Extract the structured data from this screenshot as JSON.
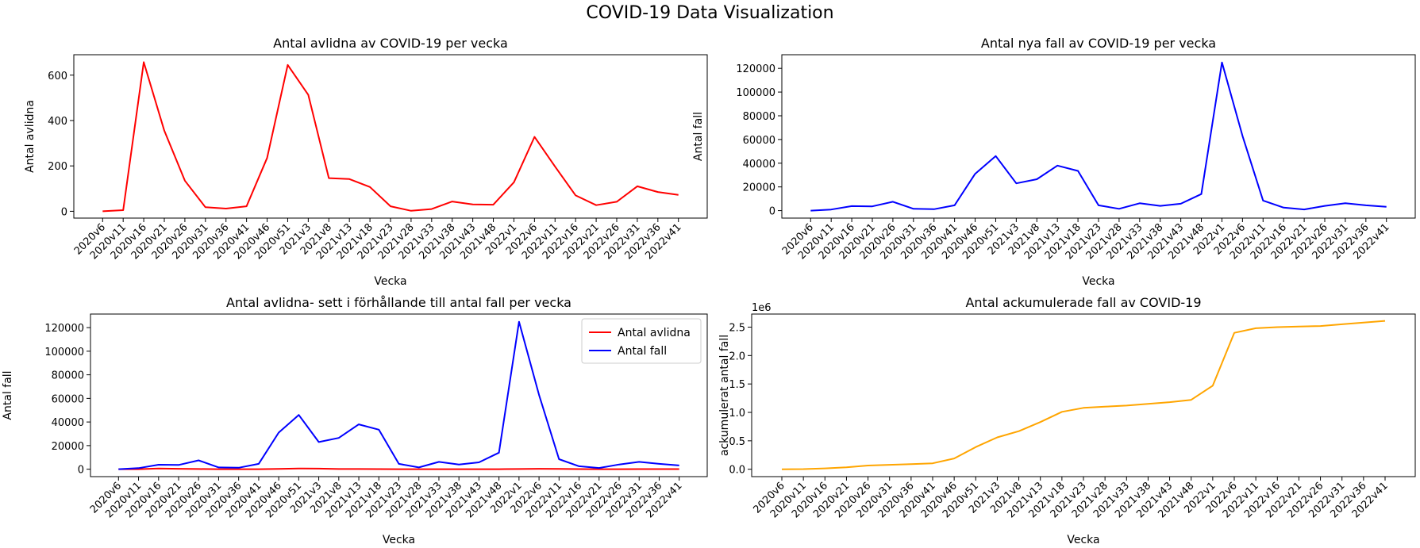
{
  "figure": {
    "suptitle": "COVID-19 Data Visualization",
    "colors": {
      "deaths": "#ff0000",
      "cases": "#0000ff",
      "cumulative": "#ffa500"
    }
  },
  "chart_data": [
    {
      "type": "line",
      "title": "Antal avlidna av COVID-19 per vecka",
      "xlabel": "Vecka",
      "ylabel": "Antal avlidna",
      "categories": [
        "2020v6",
        "2020v11",
        "2020v16",
        "2020v21",
        "2020v26",
        "2020v31",
        "2020v36",
        "2020v41",
        "2020v46",
        "2020v51",
        "2021v3",
        "2021v8",
        "2021v13",
        "2021v18",
        "2021v23",
        "2021v28",
        "2021v33",
        "2021v38",
        "2021v43",
        "2021v48",
        "2022v1",
        "2022v6",
        "2022v11",
        "2022v16",
        "2022v21",
        "2022v26",
        "2022v31",
        "2022v36",
        "2022v41"
      ],
      "ylim": [
        -30,
        690
      ],
      "yticks": [
        0,
        200,
        400,
        600
      ],
      "ytick_labels": [
        "0",
        "200",
        "400",
        "600"
      ],
      "grid": false,
      "series": [
        {
          "color": "#ff0000",
          "values": [
            0,
            5,
            657,
            355,
            135,
            18,
            12,
            22,
            235,
            645,
            513,
            146,
            142,
            107,
            22,
            2,
            10,
            43,
            30,
            29,
            128,
            328,
            197,
            70,
            27,
            42,
            110,
            85,
            72
          ]
        }
      ]
    },
    {
      "type": "line",
      "title": "Antal nya fall av COVID-19 per vecka",
      "xlabel": "Vecka",
      "ylabel": "Antal fall",
      "categories": [
        "2020v6",
        "2020v11",
        "2020v16",
        "2020v21",
        "2020v26",
        "2020v31",
        "2020v36",
        "2020v41",
        "2020v46",
        "2020v51",
        "2021v3",
        "2021v8",
        "2021v13",
        "2021v18",
        "2021v23",
        "2021v28",
        "2021v33",
        "2021v38",
        "2021v43",
        "2021v48",
        "2022v1",
        "2022v6",
        "2022v11",
        "2022v16",
        "2022v21",
        "2022v26",
        "2022v31",
        "2022v36",
        "2022v41"
      ],
      "ylim": [
        -6300,
        131500
      ],
      "yticks": [
        0,
        20000,
        40000,
        60000,
        80000,
        100000,
        120000
      ],
      "ytick_labels": [
        "0",
        "20000",
        "40000",
        "60000",
        "80000",
        "100000",
        "120000"
      ],
      "grid": false,
      "series": [
        {
          "color": "#0000ff",
          "values": [
            10,
            900,
            3800,
            3600,
            7500,
            1500,
            1200,
            4500,
            31000,
            46000,
            23000,
            26500,
            38000,
            33500,
            4500,
            1500,
            6200,
            4000,
            5800,
            14000,
            125000,
            63000,
            8500,
            2500,
            1000,
            4000,
            6200,
            4500,
            3200
          ]
        }
      ]
    },
    {
      "type": "line",
      "title": "Antal avlidna- sett i förhållande till antal fall per vecka",
      "xlabel": "Vecka",
      "ylabel": "Antal fall",
      "categories": [
        "2020v6",
        "2020v11",
        "2020v16",
        "2020v21",
        "2020v26",
        "2020v31",
        "2020v36",
        "2020v41",
        "2020v46",
        "2020v51",
        "2021v3",
        "2021v8",
        "2021v13",
        "2021v18",
        "2021v23",
        "2021v28",
        "2021v33",
        "2021v38",
        "2021v43",
        "2021v48",
        "2022v1",
        "2022v6",
        "2022v11",
        "2022v16",
        "2022v21",
        "2022v26",
        "2022v31",
        "2022v36",
        "2022v41"
      ],
      "ylim": [
        -6300,
        131500
      ],
      "yticks": [
        0,
        20000,
        40000,
        60000,
        80000,
        100000,
        120000
      ],
      "ytick_labels": [
        "0",
        "20000",
        "40000",
        "60000",
        "80000",
        "100000",
        "120000"
      ],
      "grid": false,
      "legend": "top-right",
      "series": [
        {
          "name": "Antal avlidna",
          "color": "#ff0000",
          "values": [
            0,
            5,
            657,
            355,
            135,
            18,
            12,
            22,
            235,
            645,
            513,
            146,
            142,
            107,
            22,
            2,
            10,
            43,
            30,
            29,
            128,
            328,
            197,
            70,
            27,
            42,
            110,
            85,
            72
          ]
        },
        {
          "name": "Antal fall",
          "color": "#0000ff",
          "values": [
            10,
            900,
            3800,
            3600,
            7500,
            1500,
            1200,
            4500,
            31000,
            46000,
            23000,
            26500,
            38000,
            33500,
            4500,
            1500,
            6200,
            4000,
            5800,
            14000,
            125000,
            63000,
            8500,
            2500,
            1000,
            4000,
            6200,
            4500,
            3200
          ]
        }
      ]
    },
    {
      "type": "line",
      "title": "Antal ackumulerade fall av COVID-19",
      "xlabel": "Vecka",
      "ylabel": "ackumulerat antal fall",
      "offset_label": "1e6",
      "categories": [
        "2020v6",
        "2020v11",
        "2020v16",
        "2020v21",
        "2020v26",
        "2020v31",
        "2020v36",
        "2020v41",
        "2020v46",
        "2020v51",
        "2021v3",
        "2021v8",
        "2021v13",
        "2021v18",
        "2021v23",
        "2021v28",
        "2021v33",
        "2021v38",
        "2021v43",
        "2021v48",
        "2022v1",
        "2022v6",
        "2022v11",
        "2022v16",
        "2022v21",
        "2022v26",
        "2022v31",
        "2022v36",
        "2022v41"
      ],
      "ylim": [
        -0.13,
        2.73
      ],
      "yticks": [
        0,
        0.5,
        1.0,
        1.5,
        2.0,
        2.5
      ],
      "ytick_labels": [
        "0.0",
        "0.5",
        "1.0",
        "1.5",
        "2.0",
        "2.5"
      ],
      "grid": false,
      "series": [
        {
          "color": "#ffa500",
          "values": [
            0.0,
            0.003,
            0.015,
            0.035,
            0.065,
            0.078,
            0.09,
            0.105,
            0.19,
            0.39,
            0.56,
            0.67,
            0.83,
            1.01,
            1.08,
            1.1,
            1.12,
            1.15,
            1.18,
            1.22,
            1.47,
            2.4,
            2.48,
            2.5,
            2.51,
            2.52,
            2.55,
            2.58,
            2.61
          ]
        }
      ]
    }
  ]
}
